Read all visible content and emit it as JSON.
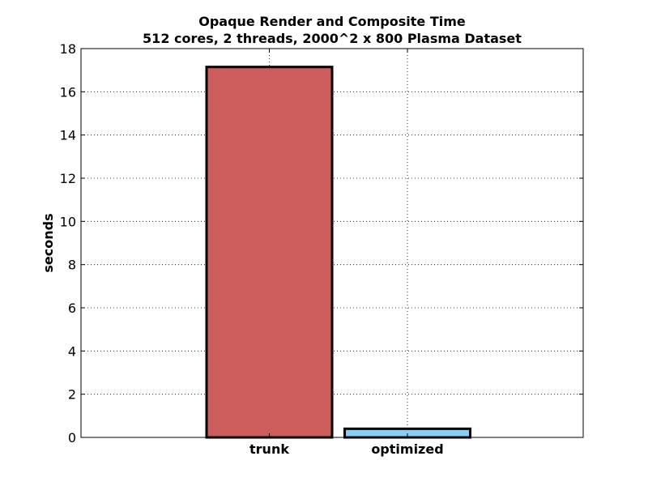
{
  "chart_data": {
    "type": "bar",
    "title": "Opaque Render and Composite Time",
    "subtitle": "512 cores, 2 threads, 2000^2 x 800 Plasma Dataset",
    "xlabel": "",
    "ylabel": "seconds",
    "categories": [
      "trunk",
      "optimized"
    ],
    "values": [
      17.15,
      0.4
    ],
    "colors": [
      "#cd5c5c",
      "#87cefa"
    ],
    "ylim": [
      0,
      18
    ],
    "yticks": [
      0,
      2,
      4,
      6,
      8,
      10,
      12,
      14,
      16,
      18
    ],
    "ytick_labels": [
      "0",
      "2",
      "4",
      "6",
      "8",
      "10",
      "12",
      "14",
      "16",
      "18"
    ],
    "grid": true,
    "legend": "none"
  }
}
